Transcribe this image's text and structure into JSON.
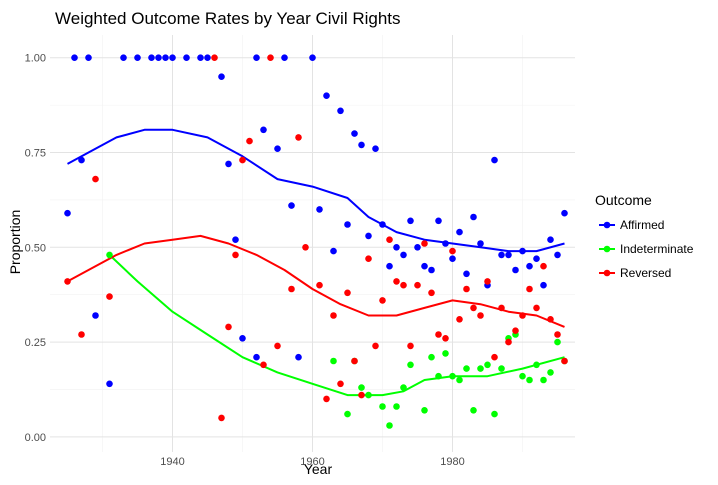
{
  "chart_data": {
    "type": "scatter",
    "title": "Weighted Outcome Rates by Year Civil Rights",
    "xlabel": "Year",
    "ylabel": "Proportion",
    "xlim": [
      1922.5,
      1997.5
    ],
    "ylim": [
      -0.04,
      1.06
    ],
    "x_major_ticks": [
      1940,
      1960,
      1980
    ],
    "x_minor_ticks": [
      1930,
      1950,
      1970,
      1990
    ],
    "y_major_ticks": [
      0.0,
      0.25,
      0.5,
      0.75,
      1.0
    ],
    "y_tick_labels": [
      "0.00",
      "0.25",
      "0.50",
      "0.75",
      "1.00"
    ],
    "y_minor_ticks": [
      0.125,
      0.375,
      0.625,
      0.875
    ],
    "x_tick_labels": [
      "1940",
      "1960",
      "1980"
    ],
    "grid": true,
    "legend": {
      "title": "Outcome",
      "position": "right"
    },
    "series": [
      {
        "name": "Affirmed",
        "color": "#0000ff",
        "points": [
          [
            1925,
            0.59
          ],
          [
            1926,
            1.0
          ],
          [
            1927,
            0.73
          ],
          [
            1928,
            1.0
          ],
          [
            1929,
            0.32
          ],
          [
            1931,
            0.14
          ],
          [
            1933,
            1.0
          ],
          [
            1935,
            1.0
          ],
          [
            1937,
            1.0
          ],
          [
            1938,
            1.0
          ],
          [
            1939,
            1.0
          ],
          [
            1940,
            1.0
          ],
          [
            1942,
            1.0
          ],
          [
            1944,
            1.0
          ],
          [
            1945,
            1.0
          ],
          [
            1947,
            0.95
          ],
          [
            1948,
            0.72
          ],
          [
            1949,
            0.52
          ],
          [
            1950,
            0.26
          ],
          [
            1952,
            0.21
          ],
          [
            1952,
            1.0
          ],
          [
            1953,
            0.81
          ],
          [
            1955,
            0.76
          ],
          [
            1956,
            1.0
          ],
          [
            1957,
            0.61
          ],
          [
            1958,
            0.21
          ],
          [
            1960,
            1.0
          ],
          [
            1961,
            0.6
          ],
          [
            1962,
            0.9
          ],
          [
            1963,
            0.49
          ],
          [
            1964,
            0.86
          ],
          [
            1965,
            0.56
          ],
          [
            1966,
            0.8
          ],
          [
            1967,
            0.77
          ],
          [
            1968,
            0.53
          ],
          [
            1969,
            0.76
          ],
          [
            1970,
            0.56
          ],
          [
            1971,
            0.45
          ],
          [
            1972,
            0.5
          ],
          [
            1973,
            0.48
          ],
          [
            1974,
            0.57
          ],
          [
            1975,
            0.5
          ],
          [
            1976,
            0.45
          ],
          [
            1977,
            0.44
          ],
          [
            1978,
            0.57
          ],
          [
            1979,
            0.51
          ],
          [
            1980,
            0.47
          ],
          [
            1981,
            0.54
          ],
          [
            1982,
            0.43
          ],
          [
            1983,
            0.58
          ],
          [
            1984,
            0.51
          ],
          [
            1985,
            0.4
          ],
          [
            1986,
            0.73
          ],
          [
            1987,
            0.48
          ],
          [
            1988,
            0.48
          ],
          [
            1989,
            0.44
          ],
          [
            1990,
            0.49
          ],
          [
            1991,
            0.45
          ],
          [
            1992,
            0.47
          ],
          [
            1993,
            0.4
          ],
          [
            1994,
            0.52
          ],
          [
            1995,
            0.48
          ],
          [
            1996,
            0.59
          ]
        ],
        "smooth": [
          [
            1925,
            0.72
          ],
          [
            1928,
            0.75
          ],
          [
            1932,
            0.79
          ],
          [
            1936,
            0.81
          ],
          [
            1940,
            0.81
          ],
          [
            1945,
            0.79
          ],
          [
            1950,
            0.74
          ],
          [
            1955,
            0.68
          ],
          [
            1960,
            0.66
          ],
          [
            1965,
            0.63
          ],
          [
            1968,
            0.58
          ],
          [
            1972,
            0.54
          ],
          [
            1976,
            0.52
          ],
          [
            1980,
            0.51
          ],
          [
            1984,
            0.5
          ],
          [
            1988,
            0.49
          ],
          [
            1992,
            0.49
          ],
          [
            1996,
            0.51
          ]
        ]
      },
      {
        "name": "Indeterminate",
        "color": "#00ff00",
        "points": [
          [
            1931,
            0.48
          ],
          [
            1963,
            0.2
          ],
          [
            1965,
            0.06
          ],
          [
            1966,
            0.2
          ],
          [
            1967,
            0.13
          ],
          [
            1968,
            0.11
          ],
          [
            1970,
            0.08
          ],
          [
            1971,
            0.03
          ],
          [
            1972,
            0.08
          ],
          [
            1973,
            0.13
          ],
          [
            1974,
            0.19
          ],
          [
            1976,
            0.07
          ],
          [
            1977,
            0.21
          ],
          [
            1978,
            0.16
          ],
          [
            1979,
            0.22
          ],
          [
            1980,
            0.16
          ],
          [
            1981,
            0.15
          ],
          [
            1982,
            0.18
          ],
          [
            1983,
            0.07
          ],
          [
            1984,
            0.18
          ],
          [
            1985,
            0.19
          ],
          [
            1986,
            0.06
          ],
          [
            1987,
            0.18
          ],
          [
            1988,
            0.26
          ],
          [
            1989,
            0.27
          ],
          [
            1990,
            0.16
          ],
          [
            1991,
            0.15
          ],
          [
            1992,
            0.19
          ],
          [
            1993,
            0.15
          ],
          [
            1994,
            0.17
          ],
          [
            1995,
            0.25
          ],
          [
            1996,
            0.2
          ]
        ],
        "smooth": [
          [
            1931,
            0.48
          ],
          [
            1935,
            0.41
          ],
          [
            1940,
            0.33
          ],
          [
            1945,
            0.27
          ],
          [
            1950,
            0.21
          ],
          [
            1955,
            0.17
          ],
          [
            1960,
            0.14
          ],
          [
            1965,
            0.11
          ],
          [
            1970,
            0.11
          ],
          [
            1973,
            0.12
          ],
          [
            1976,
            0.15
          ],
          [
            1980,
            0.16
          ],
          [
            1985,
            0.16
          ],
          [
            1990,
            0.18
          ],
          [
            1996,
            0.21
          ]
        ]
      },
      {
        "name": "Reversed",
        "color": "#ff0000",
        "points": [
          [
            1925,
            0.41
          ],
          [
            1927,
            0.27
          ],
          [
            1929,
            0.68
          ],
          [
            1931,
            0.37
          ],
          [
            1946,
            1.0
          ],
          [
            1947,
            0.05
          ],
          [
            1948,
            0.29
          ],
          [
            1949,
            0.48
          ],
          [
            1950,
            0.73
          ],
          [
            1951,
            0.78
          ],
          [
            1953,
            0.19
          ],
          [
            1954,
            1.0
          ],
          [
            1955,
            0.24
          ],
          [
            1957,
            0.39
          ],
          [
            1958,
            0.79
          ],
          [
            1959,
            0.5
          ],
          [
            1961,
            0.4
          ],
          [
            1962,
            0.1
          ],
          [
            1963,
            0.32
          ],
          [
            1964,
            0.14
          ],
          [
            1965,
            0.38
          ],
          [
            1966,
            0.2
          ],
          [
            1967,
            0.11
          ],
          [
            1968,
            0.47
          ],
          [
            1969,
            0.24
          ],
          [
            1970,
            0.36
          ],
          [
            1971,
            0.52
          ],
          [
            1972,
            0.41
          ],
          [
            1973,
            0.4
          ],
          [
            1974,
            0.24
          ],
          [
            1975,
            0.4
          ],
          [
            1976,
            0.51
          ],
          [
            1977,
            0.38
          ],
          [
            1978,
            0.27
          ],
          [
            1979,
            0.26
          ],
          [
            1980,
            0.49
          ],
          [
            1981,
            0.31
          ],
          [
            1982,
            0.39
          ],
          [
            1983,
            0.34
          ],
          [
            1984,
            0.32
          ],
          [
            1985,
            0.41
          ],
          [
            1986,
            0.21
          ],
          [
            1987,
            0.34
          ],
          [
            1988,
            0.25
          ],
          [
            1989,
            0.28
          ],
          [
            1990,
            0.32
          ],
          [
            1991,
            0.39
          ],
          [
            1992,
            0.34
          ],
          [
            1993,
            0.45
          ],
          [
            1994,
            0.31
          ],
          [
            1995,
            0.27
          ],
          [
            1996,
            0.2
          ]
        ],
        "smooth": [
          [
            1925,
            0.41
          ],
          [
            1928,
            0.44
          ],
          [
            1932,
            0.48
          ],
          [
            1936,
            0.51
          ],
          [
            1940,
            0.52
          ],
          [
            1944,
            0.53
          ],
          [
            1948,
            0.51
          ],
          [
            1952,
            0.48
          ],
          [
            1956,
            0.44
          ],
          [
            1960,
            0.39
          ],
          [
            1964,
            0.35
          ],
          [
            1968,
            0.32
          ],
          [
            1972,
            0.32
          ],
          [
            1976,
            0.34
          ],
          [
            1980,
            0.36
          ],
          [
            1984,
            0.35
          ],
          [
            1988,
            0.33
          ],
          [
            1992,
            0.32
          ],
          [
            1996,
            0.29
          ]
        ]
      }
    ]
  }
}
